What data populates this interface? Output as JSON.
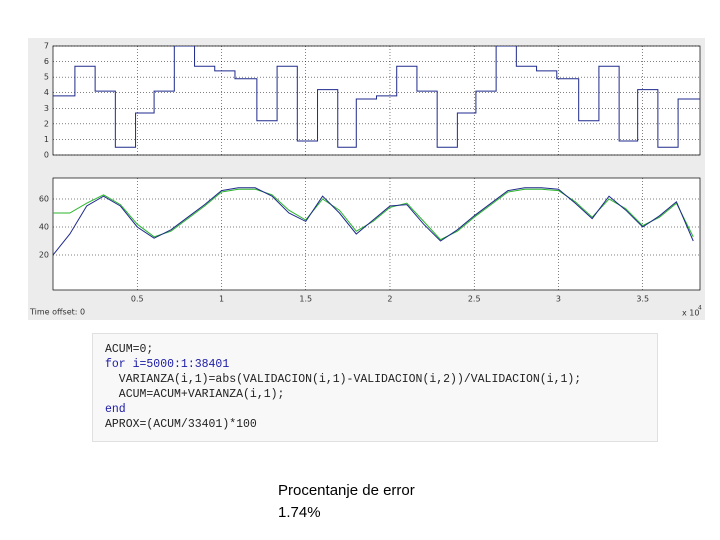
{
  "chart_data": [
    {
      "type": "line",
      "drawstyle": "steps-post",
      "x": [
        0,
        0.13,
        0.25,
        0.37,
        0.49,
        0.6,
        0.72,
        0.84,
        0.96,
        1.08,
        1.21,
        1.33,
        1.45,
        1.57,
        1.69,
        1.8,
        1.92,
        2.04,
        2.16,
        2.28,
        2.4,
        2.51,
        2.63,
        2.75,
        2.87,
        2.99,
        3.12,
        3.24,
        3.36,
        3.47,
        3.59,
        3.71
      ],
      "series": [
        {
          "color": "#1f2a8c",
          "values": [
            3.8,
            5.7,
            4.1,
            0.5,
            2.7,
            4.1,
            7,
            5.7,
            5.4,
            4.9,
            2.2,
            5.7,
            0.9,
            4.2,
            0.5,
            3.6,
            3.8,
            5.7,
            4.1,
            0.5,
            2.7,
            4.1,
            7,
            5.7,
            5.4,
            4.9,
            2.2,
            5.7,
            0.9,
            4.2,
            0.5,
            3.6
          ]
        }
      ],
      "xlim": [
        0,
        3.84
      ],
      "ylim": [
        0,
        7
      ],
      "yticks": [
        0,
        1,
        2,
        3,
        4,
        5,
        6,
        7
      ],
      "xticks": [
        0.5,
        1,
        1.5,
        2,
        2.5,
        3,
        3.5
      ],
      "grid": true
    },
    {
      "type": "line",
      "x": [
        0,
        0.1,
        0.2,
        0.3,
        0.4,
        0.5,
        0.6,
        0.7,
        0.8,
        0.9,
        1.0,
        1.1,
        1.2,
        1.3,
        1.4,
        1.5,
        1.6,
        1.7,
        1.8,
        1.9,
        2.0,
        2.1,
        2.2,
        2.3,
        2.4,
        2.5,
        2.6,
        2.7,
        2.8,
        2.9,
        3.0,
        3.1,
        3.2,
        3.3,
        3.4,
        3.5,
        3.6,
        3.7,
        3.8
      ],
      "series": [
        {
          "color": "#2ab52a",
          "values": [
            50,
            50,
            57,
            63,
            56,
            42,
            33,
            37,
            46,
            55,
            65,
            67,
            67,
            63,
            52,
            45,
            60,
            52,
            37,
            44,
            54,
            57,
            44,
            31,
            37,
            47,
            56,
            65,
            67,
            67,
            66,
            58,
            47,
            60,
            53,
            41,
            47,
            57,
            33
          ]
        },
        {
          "color": "#1f2a8c",
          "values": [
            20,
            35,
            55,
            62,
            55,
            40,
            32,
            38,
            47,
            56,
            66,
            68,
            68,
            62,
            50,
            44,
            62,
            50,
            35,
            45,
            55,
            56,
            42,
            30,
            38,
            48,
            57,
            66,
            68,
            68,
            67,
            57,
            46,
            62,
            52,
            40,
            48,
            58,
            30
          ]
        }
      ],
      "xlim": [
        0,
        3.84
      ],
      "ylim": [
        -5,
        75
      ],
      "yticks": [
        20,
        40,
        60
      ],
      "xticks": [
        0.5,
        1,
        1.5,
        2,
        2.5,
        3,
        3.5
      ],
      "grid": true,
      "x_offset_label": "Time offset:  0",
      "x_multiplier": "x 10",
      "x_multiplier_exp": "4"
    }
  ],
  "code": [
    "ACUM=0;",
    "for i=5000:1:38401",
    "  VARIANZA(i,1)=abs(VALIDACION(i,1)-VALIDACION(i,2))/VALIDACION(i,1);",
    "  ACUM=ACUM+VARIANZA(i,1);",
    "end",
    "APROX=(ACUM/33401)*100"
  ],
  "caption": [
    "Procentanje de error",
    "1.74%"
  ]
}
